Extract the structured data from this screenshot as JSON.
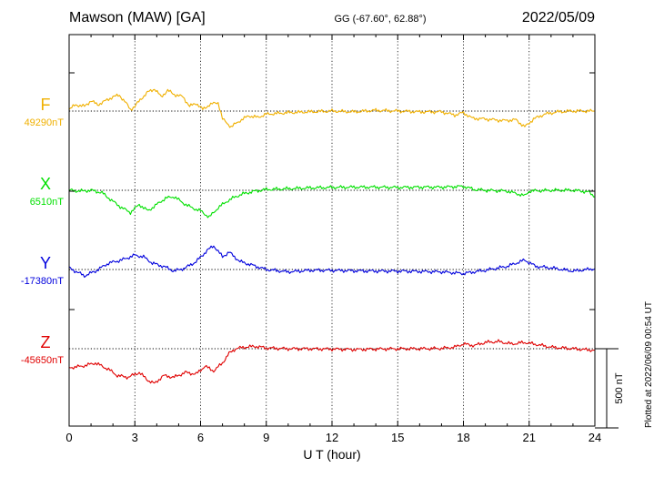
{
  "header": {
    "station": "Mawson (MAW)  [GA]",
    "coords": "GG (-67.60°,  62.88°)",
    "date": "2022/05/09"
  },
  "footer": {
    "plotted_note": "Plotted at 2022/06/09 00:54 UT"
  },
  "chart_data": {
    "type": "line",
    "xlabel": "U T (hour)",
    "xlim": [
      0,
      24
    ],
    "xticks": [
      "0",
      "3",
      "6",
      "9",
      "12",
      "15",
      "18",
      "21",
      "24"
    ],
    "grid": "vertical dotted at every 3 hours",
    "scale_bar": {
      "label": "500 nT",
      "value_nT": 500
    },
    "series": [
      {
        "name": "F",
        "baseline_label": "49290nT",
        "baseline_nT": 49290,
        "color": "#f0b000",
        "points": [
          [
            0,
            49300
          ],
          [
            0.3,
            49330
          ],
          [
            0.7,
            49320
          ],
          [
            1.0,
            49355
          ],
          [
            1.3,
            49330
          ],
          [
            1.6,
            49350
          ],
          [
            2.0,
            49380
          ],
          [
            2.3,
            49390
          ],
          [
            2.6,
            49340
          ],
          [
            2.8,
            49300
          ],
          [
            3.0,
            49320
          ],
          [
            3.3,
            49370
          ],
          [
            3.6,
            49410
          ],
          [
            3.9,
            49430
          ],
          [
            4.2,
            49380
          ],
          [
            4.5,
            49420
          ],
          [
            4.8,
            49395
          ],
          [
            5.2,
            49380
          ],
          [
            5.5,
            49320
          ],
          [
            5.8,
            49340
          ],
          [
            6.1,
            49300
          ],
          [
            6.4,
            49330
          ],
          [
            6.8,
            49345
          ],
          [
            7.0,
            49240
          ],
          [
            7.4,
            49190
          ],
          [
            7.8,
            49230
          ],
          [
            8.2,
            49260
          ],
          [
            8.6,
            49250
          ],
          [
            9.0,
            49270
          ],
          [
            10,
            49280
          ],
          [
            11,
            49285
          ],
          [
            12,
            49290
          ],
          [
            13,
            49285
          ],
          [
            14,
            49295
          ],
          [
            15,
            49290
          ],
          [
            16,
            49285
          ],
          [
            17,
            49285
          ],
          [
            17.6,
            49265
          ],
          [
            18.0,
            49280
          ],
          [
            18.4,
            49245
          ],
          [
            19.0,
            49240
          ],
          [
            19.8,
            49230
          ],
          [
            20.4,
            49235
          ],
          [
            20.8,
            49190
          ],
          [
            21.2,
            49240
          ],
          [
            21.7,
            49270
          ],
          [
            22.3,
            49285
          ],
          [
            23,
            49290
          ],
          [
            24,
            49290
          ]
        ]
      },
      {
        "name": "X",
        "baseline_label": "6510nT",
        "baseline_nT": 6510,
        "color": "#00e000",
        "points": [
          [
            0,
            6510
          ],
          [
            0.5,
            6505
          ],
          [
            1.0,
            6510
          ],
          [
            1.5,
            6495
          ],
          [
            2.0,
            6440
          ],
          [
            2.4,
            6400
          ],
          [
            2.8,
            6370
          ],
          [
            3.2,
            6420
          ],
          [
            3.6,
            6380
          ],
          [
            4.0,
            6420
          ],
          [
            4.4,
            6460
          ],
          [
            4.8,
            6470
          ],
          [
            5.2,
            6430
          ],
          [
            5.6,
            6400
          ],
          [
            6.0,
            6380
          ],
          [
            6.4,
            6340
          ],
          [
            6.8,
            6400
          ],
          [
            7.2,
            6440
          ],
          [
            7.6,
            6470
          ],
          [
            8.0,
            6490
          ],
          [
            8.5,
            6505
          ],
          [
            9,
            6515
          ],
          [
            10,
            6520
          ],
          [
            11,
            6525
          ],
          [
            12,
            6528
          ],
          [
            13,
            6530
          ],
          [
            14,
            6530
          ],
          [
            15,
            6528
          ],
          [
            16,
            6530
          ],
          [
            17,
            6530
          ],
          [
            18,
            6535
          ],
          [
            18.5,
            6515
          ],
          [
            19,
            6510
          ],
          [
            20,
            6505
          ],
          [
            20.8,
            6475
          ],
          [
            21.0,
            6505
          ],
          [
            22,
            6510
          ],
          [
            23,
            6510
          ],
          [
            23.7,
            6500
          ],
          [
            24,
            6470
          ]
        ]
      },
      {
        "name": "Y",
        "baseline_label": "-17380nT",
        "baseline_nT": -17380,
        "color": "#0000dd",
        "points": [
          [
            0,
            -17370
          ],
          [
            0.7,
            -17420
          ],
          [
            1.2,
            -17390
          ],
          [
            1.8,
            -17340
          ],
          [
            2.4,
            -17320
          ],
          [
            3.0,
            -17290
          ],
          [
            3.4,
            -17300
          ],
          [
            3.8,
            -17340
          ],
          [
            4.3,
            -17360
          ],
          [
            4.8,
            -17390
          ],
          [
            5.3,
            -17370
          ],
          [
            5.8,
            -17330
          ],
          [
            6.3,
            -17260
          ],
          [
            6.6,
            -17230
          ],
          [
            7.0,
            -17300
          ],
          [
            7.3,
            -17270
          ],
          [
            7.8,
            -17330
          ],
          [
            8.3,
            -17350
          ],
          [
            9.0,
            -17380
          ],
          [
            10,
            -17395
          ],
          [
            11,
            -17385
          ],
          [
            12,
            -17385
          ],
          [
            13,
            -17388
          ],
          [
            14,
            -17390
          ],
          [
            15,
            -17390
          ],
          [
            16,
            -17392
          ],
          [
            17,
            -17395
          ],
          [
            18,
            -17405
          ],
          [
            18.5,
            -17395
          ],
          [
            19,
            -17385
          ],
          [
            20,
            -17360
          ],
          [
            20.8,
            -17320
          ],
          [
            21.3,
            -17360
          ],
          [
            22,
            -17370
          ],
          [
            23,
            -17390
          ],
          [
            24,
            -17375
          ]
        ]
      },
      {
        "name": "Z",
        "baseline_label": "-45650nT",
        "baseline_nT": -45650,
        "color": "#e00000",
        "points": [
          [
            0,
            -45770
          ],
          [
            0.6,
            -45760
          ],
          [
            1.2,
            -45740
          ],
          [
            1.8,
            -45780
          ],
          [
            2.2,
            -45820
          ],
          [
            2.7,
            -45830
          ],
          [
            3.2,
            -45800
          ],
          [
            3.6,
            -45850
          ],
          [
            3.9,
            -45870
          ],
          [
            4.3,
            -45820
          ],
          [
            4.8,
            -45830
          ],
          [
            5.3,
            -45800
          ],
          [
            5.8,
            -45810
          ],
          [
            6.2,
            -45760
          ],
          [
            6.6,
            -45790
          ],
          [
            7.0,
            -45740
          ],
          [
            7.3,
            -45680
          ],
          [
            7.6,
            -45650
          ],
          [
            8.0,
            -45640
          ],
          [
            8.5,
            -45635
          ],
          [
            9,
            -45645
          ],
          [
            10,
            -45650
          ],
          [
            11,
            -45650
          ],
          [
            12,
            -45652
          ],
          [
            13,
            -45655
          ],
          [
            14,
            -45652
          ],
          [
            15,
            -45650
          ],
          [
            16,
            -45650
          ],
          [
            17,
            -45648
          ],
          [
            17.6,
            -45640
          ],
          [
            18,
            -45620
          ],
          [
            18.5,
            -45630
          ],
          [
            19,
            -45610
          ],
          [
            19.6,
            -45605
          ],
          [
            20.2,
            -45620
          ],
          [
            20.8,
            -45610
          ],
          [
            21.2,
            -45620
          ],
          [
            22,
            -45640
          ],
          [
            23,
            -45650
          ],
          [
            24,
            -45660
          ]
        ]
      }
    ]
  }
}
